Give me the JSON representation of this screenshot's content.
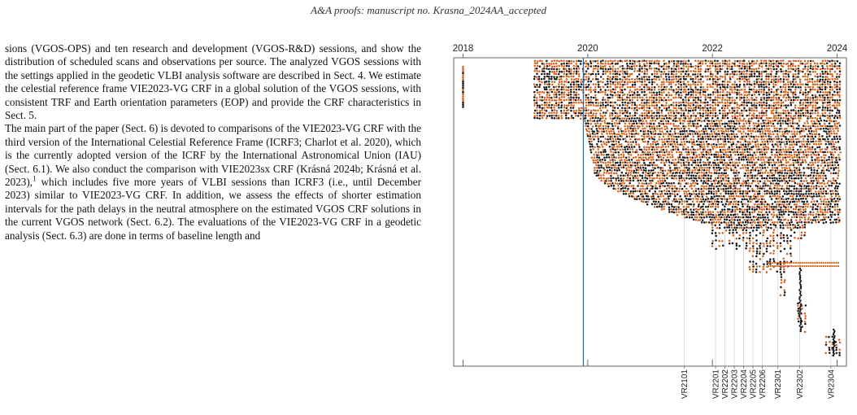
{
  "header": {
    "text": "A&A proofs: manuscript no. Krasna_2024AA_accepted"
  },
  "body": {
    "paragraph1": "sions (VGOS-OPS) and ten research and development (VGOS-R&D) sessions, and show the distribution of scheduled scans and observations per source. The analyzed VGOS sessions with the settings applied in the geodetic VLBI analysis software are described in Sect. 4. We estimate the celestial reference frame VIE2023-VG CRF in a global solution of the VGOS sessions, with consistent TRF and Earth orientation parameters (EOP) and provide the CRF characteristics in Sect. 5.",
    "paragraph2_a": "The main part of the paper (Sect. 6) is devoted to comparisons of the VIE2023-VG CRF with the third version of the International Celestial Reference Frame (ICRF3; Charlot et al. 2020), which is the currently adopted version of the ICRF by the International Astronomical Union (IAU) (Sect. 6.1). We also conduct the comparison with VIE2023sx CRF (Krásná 2024b; Krásná et al. 2023),",
    "footnote_mark": "1",
    "paragraph2_b": " which includes five more years of VLBI sessions than ICRF3 (i.e., until December 2023) similar to VIE2023-VG CRF. In addition, we assess the effects of shorter estimation intervals for the path delays in the neutral atmosphere on the estimated VGOS CRF solutions in the current VGOS network (Sect. 6.2). The evaluations of the VIE2023-VG CRF in a geodetic analysis (Sect. 6.3) are done in terms of baseline length and"
  },
  "chart_data": {
    "type": "scatter",
    "title": "",
    "xlabel": "",
    "ylabel": "",
    "xlim": [
      2017.85,
      2024.15
    ],
    "x_tick_labels": [
      "2018",
      "2020",
      "2022",
      "2024"
    ],
    "x_ticks": [
      2018,
      2020,
      2022,
      2024
    ],
    "blue_line_x": 2019.93,
    "session_labels": [
      "VR2101",
      "VR2201",
      "VR2202",
      "VR2203",
      "VR2204",
      "VR2205",
      "VR2206",
      "VR2301",
      "VR2302",
      "VR2304"
    ],
    "session_x": [
      2021.55,
      2022.05,
      2022.2,
      2022.35,
      2022.5,
      2022.65,
      2022.8,
      2023.05,
      2023.4,
      2023.9
    ],
    "colors": {
      "ops": "#d2601a",
      "rd": "#111111",
      "blue": "#1f6fb5",
      "grid": "#d4d4d4",
      "frame": "#666666"
    },
    "series": [
      {
        "color": "#d2601a",
        "marker": "dot"
      },
      {
        "color": "#111111",
        "marker": "dot"
      }
    ]
  }
}
